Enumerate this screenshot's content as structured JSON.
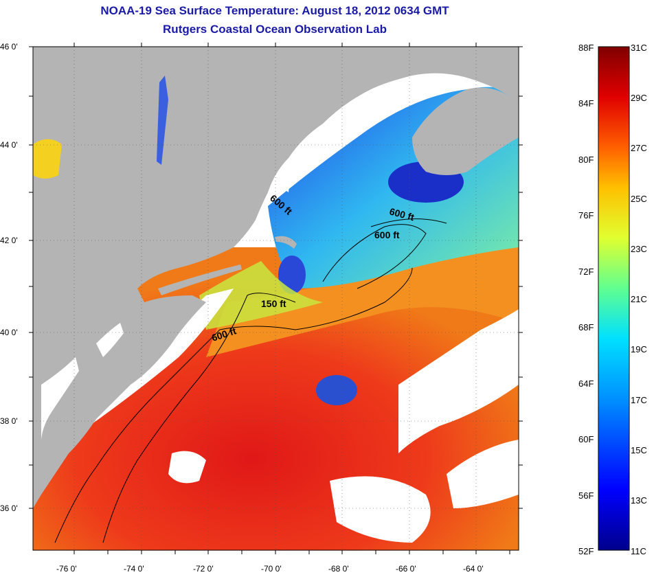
{
  "title": {
    "line1": "NOAA-19 Sea Surface Temperature:  August 18, 2012 0634 GMT",
    "line2": "Rutgers Coastal Ocean Observation Lab"
  },
  "map": {
    "lat_range": [
      35,
      46
    ],
    "lon_range": [
      -77,
      -63
    ],
    "lat_labels": [
      "46 0'",
      "44 0'",
      "42 0'",
      "40 0'",
      "38 0'",
      "36 0'"
    ],
    "lon_labels": [
      "-76 0'",
      "-74 0'",
      "-72 0'",
      "-70 0'",
      "-68 0'",
      "-66 0'",
      "-64 0'"
    ],
    "contour_labels": [
      "600 ft",
      "600 ft",
      "600 ft",
      "150 ft",
      "600 ft"
    ],
    "colors": {
      "land": "#b4b4b4",
      "cloud": "#ffffff",
      "warm": "#e8221c",
      "cool": "#2a54e8"
    }
  },
  "colorbar": {
    "f_labels": [
      "88F",
      "84F",
      "80F",
      "76F",
      "72F",
      "68F",
      "64F",
      "60F",
      "56F",
      "52F"
    ],
    "c_labels": [
      "31C",
      "29C",
      "27C",
      "25C",
      "23C",
      "21C",
      "19C",
      "17C",
      "15C",
      "13C",
      "11C"
    ],
    "range_f": [
      52,
      88
    ],
    "range_c": [
      11,
      31
    ],
    "colors": [
      "#00008c",
      "#0000ff",
      "#0090ff",
      "#00e0ff",
      "#60ff90",
      "#e0ff30",
      "#ffc000",
      "#ff6000",
      "#e00000",
      "#800000"
    ]
  }
}
